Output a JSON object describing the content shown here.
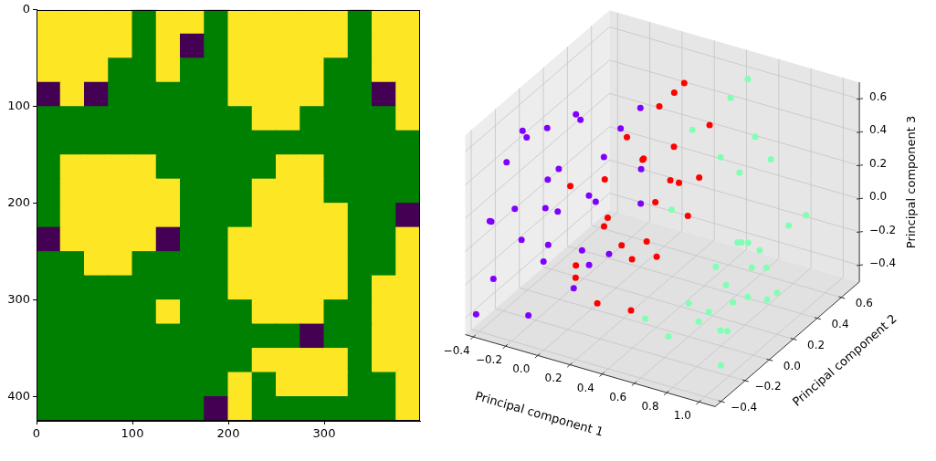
{
  "chart_data": [
    {
      "type": "image",
      "xlim": [
        0,
        400
      ],
      "ylim": [
        425,
        0
      ],
      "xticks": [
        0,
        100,
        200,
        300
      ],
      "yticks": [
        0,
        100,
        200,
        300,
        400
      ],
      "colors": [
        "#440154",
        "#008000",
        "#fde725"
      ],
      "cells": [
        [
          2,
          2,
          2,
          2,
          1,
          2,
          2,
          1,
          2,
          2,
          2,
          2,
          2,
          1,
          2,
          2
        ],
        [
          2,
          2,
          2,
          2,
          1,
          2,
          0,
          1,
          2,
          2,
          2,
          2,
          2,
          1,
          2,
          2
        ],
        [
          2,
          2,
          2,
          1,
          1,
          2,
          1,
          1,
          2,
          2,
          2,
          2,
          1,
          1,
          2,
          2
        ],
        [
          0,
          2,
          0,
          1,
          1,
          1,
          1,
          1,
          2,
          2,
          2,
          2,
          1,
          1,
          0,
          2
        ],
        [
          1,
          1,
          1,
          1,
          1,
          1,
          1,
          1,
          1,
          2,
          2,
          1,
          1,
          1,
          1,
          2
        ],
        [
          1,
          1,
          1,
          1,
          1,
          1,
          1,
          1,
          1,
          1,
          1,
          1,
          1,
          1,
          1,
          1
        ],
        [
          1,
          2,
          2,
          2,
          2,
          1,
          1,
          1,
          1,
          1,
          2,
          2,
          1,
          1,
          1,
          1
        ],
        [
          1,
          2,
          2,
          2,
          2,
          2,
          1,
          1,
          1,
          2,
          2,
          2,
          1,
          1,
          1,
          1
        ],
        [
          1,
          2,
          2,
          2,
          2,
          2,
          1,
          1,
          1,
          2,
          2,
          2,
          2,
          1,
          1,
          0
        ],
        [
          0,
          2,
          2,
          2,
          2,
          0,
          1,
          1,
          2,
          2,
          2,
          2,
          2,
          1,
          1,
          2
        ],
        [
          1,
          1,
          2,
          2,
          1,
          1,
          1,
          1,
          2,
          2,
          2,
          2,
          2,
          1,
          1,
          2
        ],
        [
          1,
          1,
          1,
          1,
          1,
          1,
          1,
          1,
          2,
          2,
          2,
          2,
          2,
          1,
          2,
          2
        ],
        [
          1,
          1,
          1,
          1,
          1,
          2,
          1,
          1,
          1,
          2,
          2,
          2,
          1,
          1,
          2,
          2
        ],
        [
          1,
          1,
          1,
          1,
          1,
          1,
          1,
          1,
          1,
          1,
          1,
          0,
          1,
          1,
          2,
          2
        ],
        [
          1,
          1,
          1,
          1,
          1,
          1,
          1,
          1,
          1,
          2,
          2,
          2,
          2,
          1,
          2,
          2
        ],
        [
          1,
          1,
          1,
          1,
          1,
          1,
          1,
          1,
          2,
          1,
          2,
          2,
          2,
          1,
          1,
          2
        ],
        [
          1,
          1,
          1,
          1,
          1,
          1,
          1,
          0,
          2,
          1,
          1,
          1,
          1,
          1,
          1,
          2
        ]
      ]
    },
    {
      "type": "scatter3d",
      "x_label": "Principal component 1",
      "y_label": "Principal component 2",
      "z_label": "Principal component 3",
      "xlim": [
        -0.45,
        1.1
      ],
      "ylim": [
        -0.45,
        0.75
      ],
      "zlim": [
        -0.5,
        0.7
      ],
      "xticks": [
        {
          "value": -0.4,
          "label": "−0.4"
        },
        {
          "value": -0.2,
          "label": "−0.2"
        },
        {
          "value": 0,
          "label": "0.0"
        },
        {
          "value": 0.2,
          "label": "0.2"
        },
        {
          "value": 0.4,
          "label": "0.4"
        },
        {
          "value": 0.6,
          "label": "0.6"
        },
        {
          "value": 0.8,
          "label": "0.8"
        },
        {
          "value": 1,
          "label": "1.0"
        }
      ],
      "yticks": [
        {
          "value": -0.4,
          "label": "−0.4"
        },
        {
          "value": -0.2,
          "label": "−0.2"
        },
        {
          "value": 0,
          "label": "0.0"
        },
        {
          "value": 0.2,
          "label": "0.2"
        },
        {
          "value": 0.4,
          "label": "0.4"
        },
        {
          "value": 0.6,
          "label": "0.6"
        }
      ],
      "zticks": [
        {
          "value": -0.4,
          "label": "−0.4"
        },
        {
          "value": -0.2,
          "label": "−0.2"
        },
        {
          "value": 0,
          "label": "0.0"
        },
        {
          "value": 0.2,
          "label": "0.2"
        },
        {
          "value": 0.4,
          "label": "0.4"
        },
        {
          "value": 0.6,
          "label": "0.6"
        }
      ],
      "grid": true,
      "series": [
        {
          "color": "#8000ff",
          "points": [
            [
              -0.42,
              -0.4,
              -0.4
            ],
            [
              -0.4,
              -0.3,
              0.1
            ],
            [
              -0.38,
              -0.2,
              0.4
            ],
            [
              -0.35,
              -0.35,
              -0.2
            ],
            [
              -0.33,
              -0.1,
              0.5
            ],
            [
              -0.3,
              0.0,
              -0.3
            ],
            [
              -0.28,
              0.1,
              0.2
            ],
            [
              -0.25,
              -0.25,
              0.0
            ],
            [
              -0.22,
              0.2,
              0.45
            ],
            [
              -0.2,
              0.3,
              -0.1
            ],
            [
              -0.18,
              -0.4,
              0.3
            ],
            [
              -0.15,
              0.05,
              -0.45
            ],
            [
              -0.12,
              0.4,
              0.3
            ],
            [
              -0.1,
              -0.15,
              0.15
            ],
            [
              -0.08,
              0.25,
              -0.35
            ],
            [
              -0.05,
              -0.3,
              0.45
            ],
            [
              -0.03,
              0.45,
              0.05
            ],
            [
              0.0,
              0.1,
              0.35
            ],
            [
              0.02,
              -0.05,
              -0.2
            ],
            [
              0.04,
              0.35,
              0.5
            ],
            [
              -0.4,
              0.15,
              -0.1
            ],
            [
              -0.36,
              0.35,
              0.35
            ],
            [
              -0.32,
              -0.42,
              0.2
            ],
            [
              -0.27,
              0.28,
              -0.4
            ],
            [
              -0.24,
              -0.05,
              0.55
            ],
            [
              -0.17,
              -0.3,
              -0.4
            ],
            [
              -0.13,
              0.15,
              0.05
            ],
            [
              -0.07,
              0.5,
              -0.2
            ],
            [
              -0.43,
              0.0,
              0.45
            ],
            [
              -0.01,
              -0.35,
              0.1
            ]
          ]
        },
        {
          "color": "#ff0000",
          "points": [
            [
              0.05,
              -0.2,
              -0.1
            ],
            [
              0.08,
              0.0,
              0.3
            ],
            [
              0.1,
              0.2,
              -0.3
            ],
            [
              0.12,
              0.4,
              0.5
            ],
            [
              0.15,
              -0.1,
              0.1
            ],
            [
              0.17,
              0.3,
              0.0
            ],
            [
              0.2,
              0.5,
              0.6
            ],
            [
              0.22,
              -0.25,
              -0.25
            ],
            [
              0.24,
              0.1,
              0.4
            ],
            [
              0.26,
              0.45,
              -0.15
            ],
            [
              0.28,
              -0.05,
              -0.4
            ],
            [
              0.3,
              0.25,
              0.2
            ],
            [
              0.32,
              0.55,
              0.35
            ],
            [
              0.34,
              0.0,
              0.0
            ],
            [
              0.06,
              0.35,
              0.2
            ],
            [
              0.09,
              -0.3,
              0.45
            ],
            [
              0.13,
              0.55,
              -0.05
            ],
            [
              0.18,
              0.05,
              0.55
            ],
            [
              0.21,
              -0.15,
              0.2
            ],
            [
              0.25,
              0.35,
              0.65
            ],
            [
              0.29,
              0.15,
              -0.2
            ],
            [
              0.33,
              0.45,
              0.1
            ],
            [
              0.11,
              0.1,
              -0.15
            ],
            [
              0.16,
              -0.35,
              -0.05
            ],
            [
              0.36,
              0.2,
              0.45
            ]
          ]
        },
        {
          "color": "#80ffb4",
          "points": [
            [
              0.6,
              0.0,
              -0.3
            ],
            [
              0.62,
              0.2,
              -0.2
            ],
            [
              0.65,
              0.1,
              -0.4
            ],
            [
              0.68,
              0.3,
              -0.1
            ],
            [
              0.7,
              -0.05,
              -0.35
            ],
            [
              0.72,
              0.15,
              -0.25
            ],
            [
              0.74,
              0.25,
              -0.05
            ],
            [
              0.76,
              0.05,
              -0.45
            ],
            [
              0.78,
              0.35,
              -0.15
            ],
            [
              0.8,
              0.1,
              -0.3
            ],
            [
              0.82,
              0.2,
              0.0
            ],
            [
              0.84,
              0.0,
              -0.4
            ],
            [
              0.86,
              0.3,
              -0.2
            ],
            [
              0.88,
              0.15,
              -0.1
            ],
            [
              0.9,
              0.25,
              -0.35
            ],
            [
              0.93,
              0.05,
              -0.2
            ],
            [
              0.96,
              0.35,
              0.05
            ],
            [
              1.0,
              0.2,
              -0.25
            ],
            [
              1.03,
              0.4,
              0.1
            ],
            [
              0.55,
              -0.1,
              -0.45
            ],
            [
              0.5,
              0.4,
              0.3
            ],
            [
              0.45,
              0.55,
              0.55
            ],
            [
              0.52,
              0.6,
              0.65
            ],
            [
              0.58,
              0.45,
              0.2
            ],
            [
              0.64,
              0.5,
              0.4
            ],
            [
              0.42,
              0.1,
              0.15
            ],
            [
              0.48,
              -0.2,
              -0.3
            ],
            [
              0.7,
              0.55,
              0.25
            ],
            [
              0.95,
              -0.2,
              -0.45
            ],
            [
              0.4,
              0.3,
              0.5
            ]
          ]
        }
      ]
    }
  ]
}
